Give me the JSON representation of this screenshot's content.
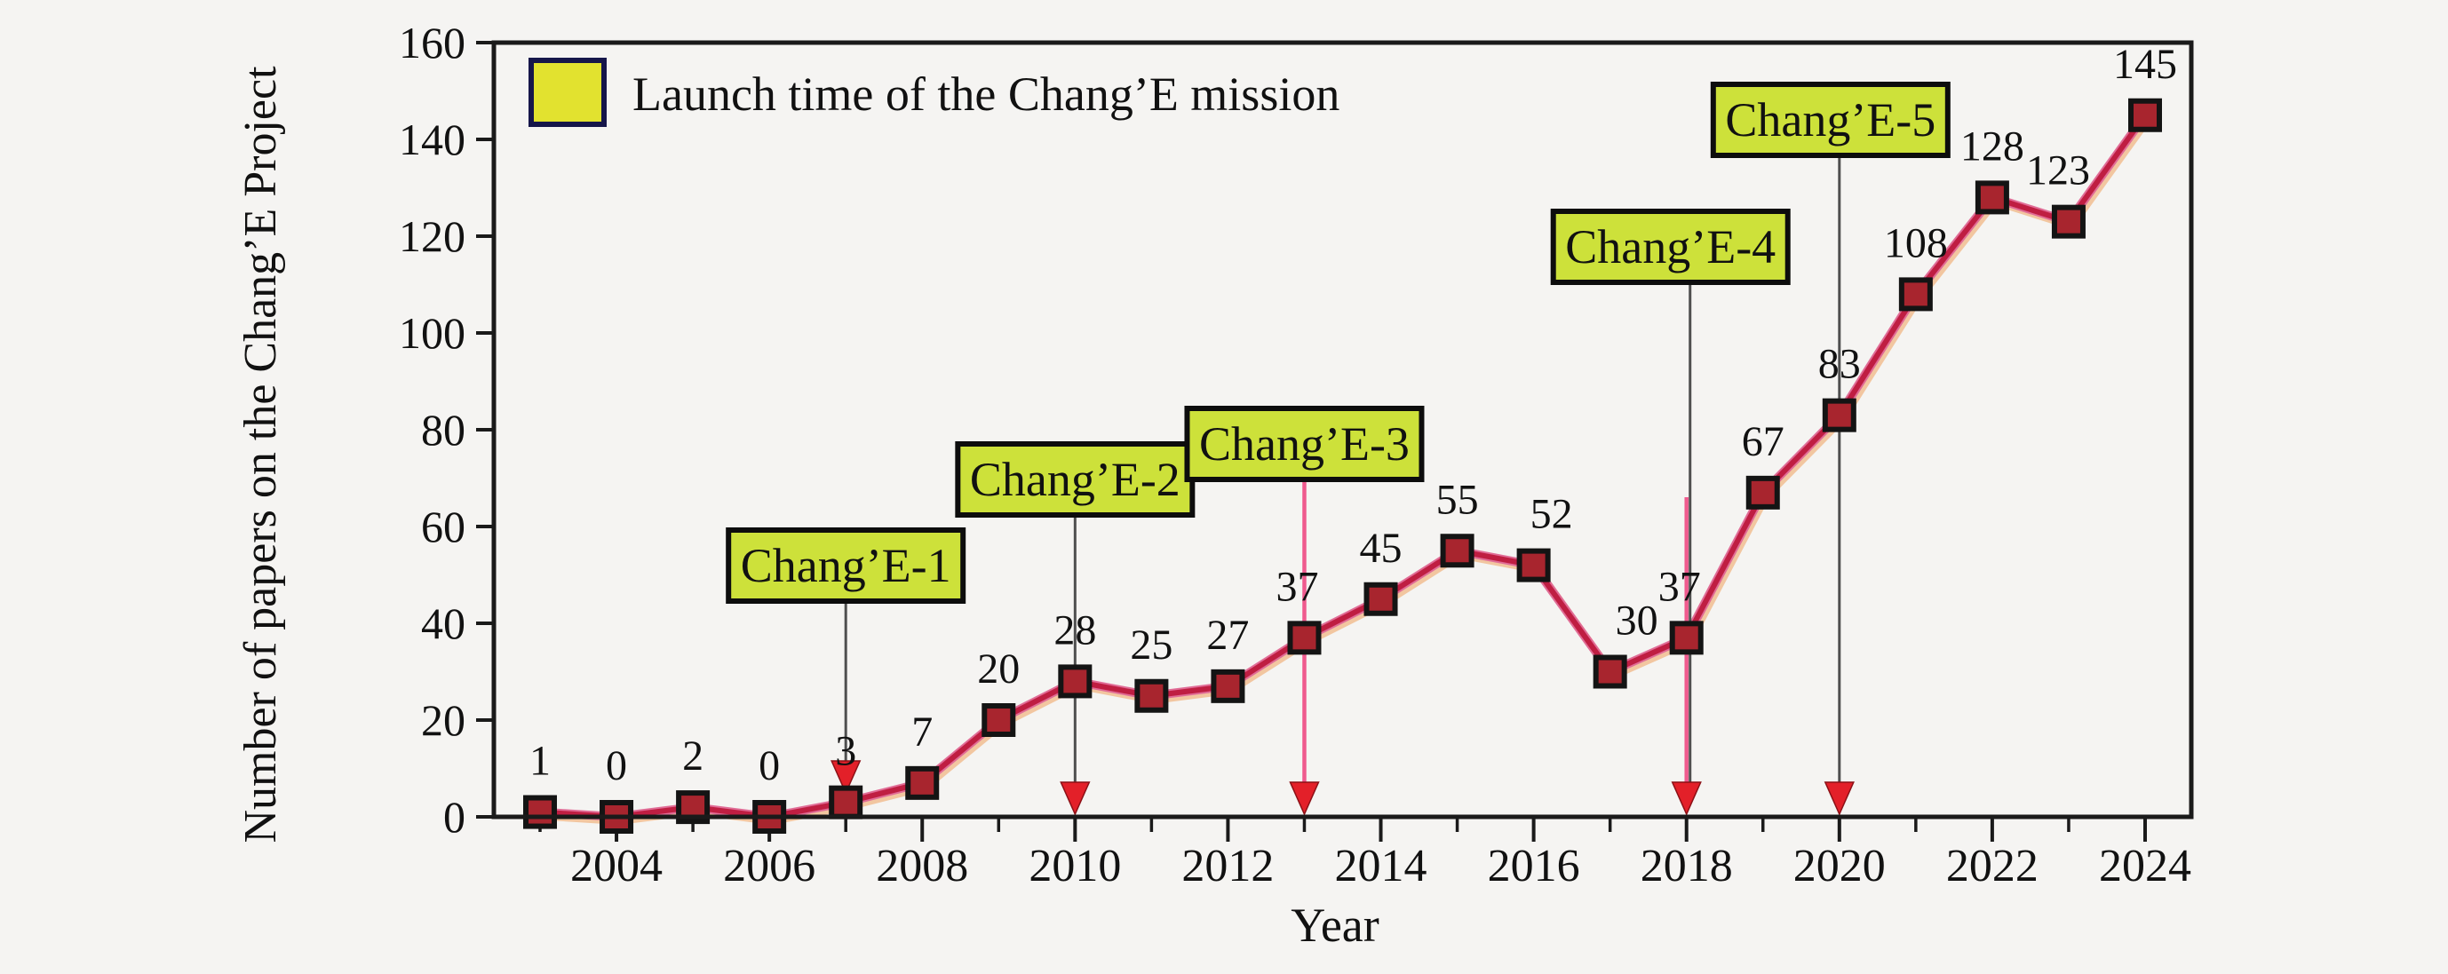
{
  "figure": {
    "background": "#f5f4f2"
  },
  "chart_data": {
    "type": "line",
    "title": "",
    "xlabel": "Year",
    "ylabel": "Number of papers on the Chang’E Project",
    "x": [
      2003,
      2004,
      2005,
      2006,
      2007,
      2008,
      2009,
      2010,
      2011,
      2012,
      2013,
      2014,
      2015,
      2016,
      2017,
      2018,
      2019,
      2020,
      2021,
      2022,
      2023,
      2024
    ],
    "values": [
      1,
      0,
      2,
      0,
      3,
      7,
      20,
      28,
      25,
      27,
      37,
      45,
      55,
      52,
      30,
      37,
      67,
      83,
      108,
      128,
      123,
      145
    ],
    "xlim": [
      2002.4,
      2024.6
    ],
    "ylim": [
      0,
      160
    ],
    "y_ticks": [
      0,
      20,
      40,
      60,
      80,
      100,
      120,
      140,
      160
    ],
    "x_major_ticks": [
      2004,
      2006,
      2008,
      2010,
      2012,
      2014,
      2016,
      2018,
      2020,
      2022,
      2024
    ],
    "x_minor_ticks": [
      2003,
      2005,
      2007,
      2009,
      2011,
      2013,
      2015,
      2017,
      2019,
      2021,
      2023
    ],
    "grid": false,
    "legend": {
      "label": "Launch time of the Chang’E mission",
      "position": "top-left"
    },
    "annotations": [
      {
        "label": "Chang’E-1",
        "year": 2007,
        "leader": "gray"
      },
      {
        "label": "Chang’E-2",
        "year": 2010,
        "leader": "gray"
      },
      {
        "label": "Chang’E-3",
        "year": 2013,
        "leader": "pink"
      },
      {
        "label": "Chang’E-4",
        "year": 2018,
        "leader": "gray-pink"
      },
      {
        "label": "Chang’E-5",
        "year": 2020,
        "leader": "gray"
      }
    ]
  },
  "palette": {
    "line": "#bf1e42",
    "line_mid": "#e06c96",
    "line_halo": "#f2c6a0",
    "marker_fill": "#a8252e",
    "marker_stroke": "#141414",
    "arrow": "#e32029",
    "leader_gray": "#4f4f4f",
    "leader_pink": "#ef5a8e",
    "annotation_fill": "#cde13a",
    "annotation_border": "#0d0d0d",
    "legend_fill": "#e2e22f",
    "legend_border": "#16164a",
    "axis": "#1a1a1a",
    "text": "#111111"
  }
}
